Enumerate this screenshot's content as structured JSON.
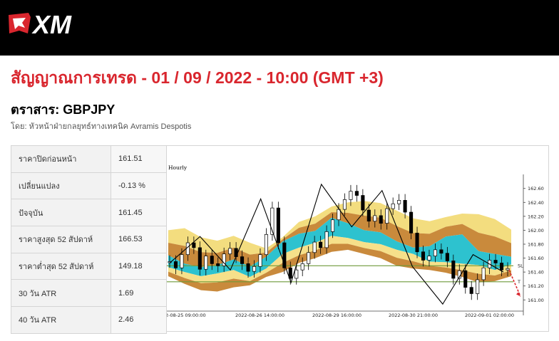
{
  "brand": {
    "name": "XM",
    "colors": {
      "bar": "#000000",
      "accent": "#d9262e"
    }
  },
  "article": {
    "headline": "สัญญาณการเทรด - 01 / 09 / 2022 - 10:00 (GMT +3)",
    "symbol_line": "ตราสาร: GBPJPY",
    "byline": "โดย: หัวหน้าฝ่ายกลยุทธ์ทางเทคนิค Avramis Despotis"
  },
  "stats": [
    {
      "label": "ราคาปิดก่อนหน้า",
      "value": "161.51"
    },
    {
      "label": "เปลี่ยนแปลง",
      "value": "-0.13 %"
    },
    {
      "label": "ปัจจุบัน",
      "value": "161.45"
    },
    {
      "label": "ราคาสูงสุด 52 สัปดาห์",
      "value": "166.53"
    },
    {
      "label": "ราคาต่ำสุด 52 สัปดาห์",
      "value": "149.18"
    },
    {
      "label": "30 วัน ATR",
      "value": "1.69"
    },
    {
      "label": "40 วัน ATR",
      "value": "2.46"
    }
  ],
  "chart_data": {
    "type": "candlestick",
    "timeframe": "Hourly",
    "symbol": "GBPJPY",
    "ylim": [
      160.88,
      162.72
    ],
    "yticks": [
      "162.60",
      "162.40",
      "162.20",
      "162.00",
      "161.80",
      "161.60",
      "161.40",
      "161.20",
      "161.00"
    ],
    "xticks": [
      "2-08-25 09:00:00",
      "2022-08-26 14:00:00",
      "2022-08-29 16:00:00",
      "2022-08-30 21:00:00",
      "2022-09-01 02:00:00"
    ],
    "levels": [
      {
        "name": "SL",
        "value": 161.49,
        "color": "#6f9a3a"
      },
      {
        "name": "T",
        "value": 161.26,
        "color": "#6f9a3a"
      }
    ],
    "close_path": [
      161.55,
      161.46,
      161.65,
      161.82,
      161.75,
      161.44,
      161.63,
      161.52,
      161.49,
      161.66,
      161.74,
      161.62,
      161.52,
      161.41,
      161.48,
      161.65,
      161.94,
      162.32,
      161.82,
      161.46,
      161.31,
      161.43,
      161.52,
      161.68,
      161.83,
      161.75,
      161.98,
      162.15,
      162.3,
      162.44,
      162.56,
      162.5,
      162.29,
      162.13,
      162.21,
      162.1,
      162.31,
      162.38,
      162.43,
      162.26,
      161.96,
      161.69,
      161.57,
      161.63,
      161.72,
      161.67,
      161.56,
      161.31,
      161.42,
      161.18,
      161.09,
      161.29,
      161.46,
      161.57,
      161.53,
      161.43,
      161.45
    ],
    "zigzag": [
      161.53,
      161.91,
      161.43,
      162.45,
      161.25,
      162.66,
      162.05,
      162.57,
      161.48,
      160.94,
      161.65,
      161.4
    ],
    "upper_band": [
      162.0,
      162.03,
      161.9,
      161.85,
      161.92,
      161.82,
      161.74,
      161.9,
      162.12,
      162.2,
      162.34,
      162.4,
      162.42,
      162.39,
      162.28,
      162.17,
      162.13,
      162.19,
      162.24,
      162.23,
      162.16,
      162.01
    ],
    "cyan_top": [
      161.64,
      161.52,
      161.47,
      161.5,
      161.58,
      161.48,
      161.62,
      161.84,
      161.95,
      161.99,
      162.18,
      162.1,
      162.0,
      161.97,
      161.84,
      161.75,
      161.77,
      161.91,
      161.94,
      161.7,
      161.66,
      161.62
    ],
    "cyan_bottom": [
      161.47,
      161.4,
      161.34,
      161.38,
      161.43,
      161.33,
      161.45,
      161.66,
      161.75,
      161.82,
      161.92,
      161.89,
      161.83,
      161.8,
      161.72,
      161.66,
      161.55,
      161.54,
      161.52,
      161.5,
      161.43,
      161.51
    ],
    "lower_band": [
      161.34,
      161.23,
      161.14,
      161.12,
      161.18,
      161.21,
      161.33,
      161.4,
      161.53,
      161.6,
      161.69,
      161.72,
      161.66,
      161.6,
      161.49,
      161.45,
      161.43,
      161.39,
      161.33,
      161.25,
      161.27,
      161.34
    ],
    "forecast": [
      161.43,
      161.05
    ]
  }
}
